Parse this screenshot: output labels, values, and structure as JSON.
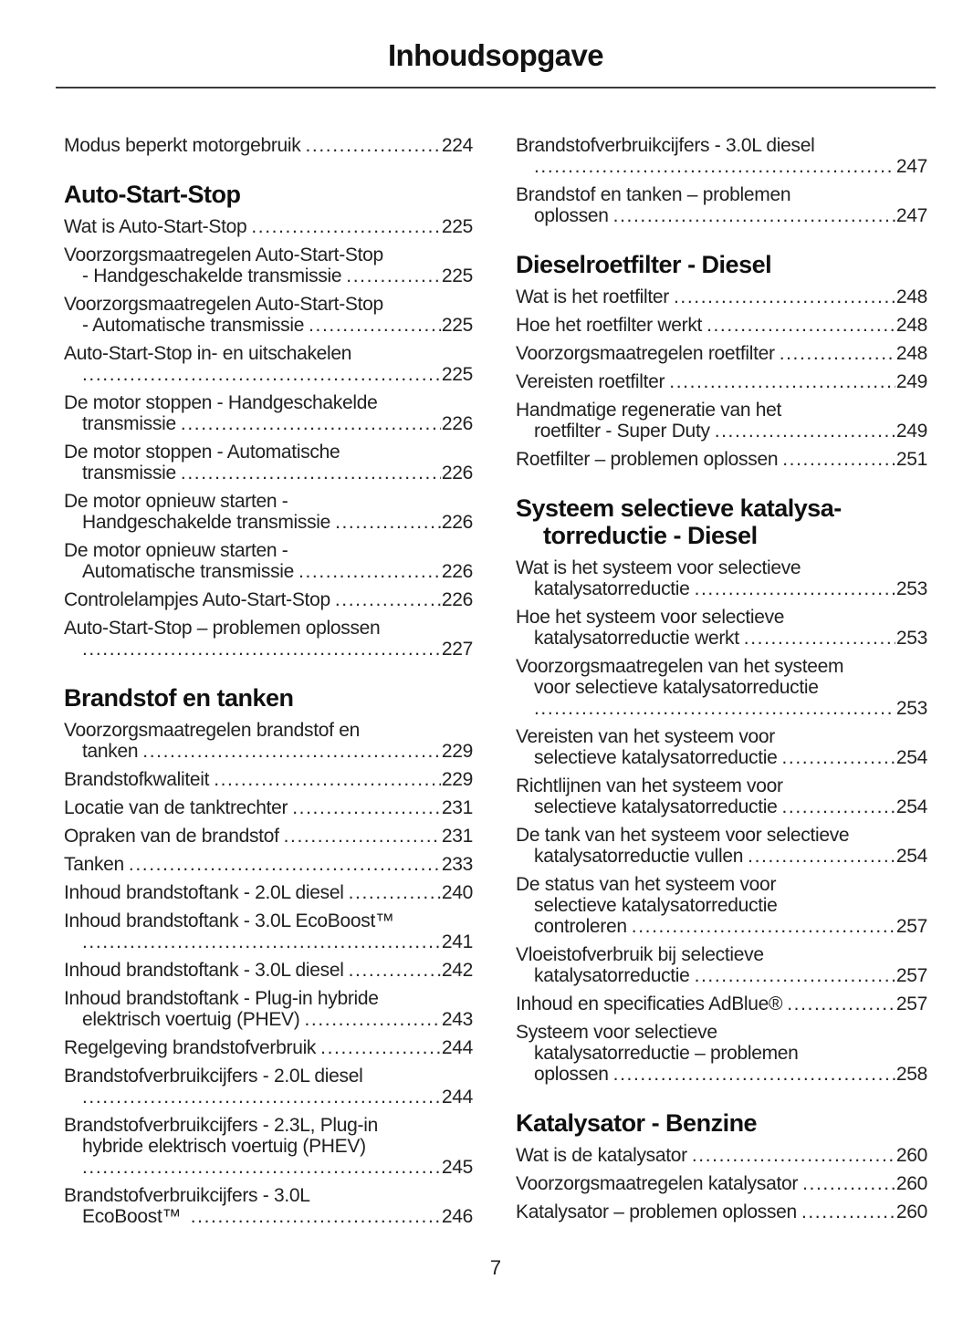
{
  "title": "Inhoudsopgave",
  "footer": {
    "page_number": "7"
  },
  "colors": {
    "text": "#212121",
    "heading": "#101010",
    "background": "#ffffff"
  },
  "toc": {
    "left_column": [
      {
        "heading": null,
        "entries": [
          {
            "lines": [],
            "last": "Modus beperkt motorgebruik",
            "page": "224"
          }
        ]
      },
      {
        "heading": [
          "Auto-Start-Stop"
        ],
        "entries": [
          {
            "lines": [],
            "last": "Wat is Auto-Start-Stop",
            "page": "225"
          },
          {
            "lines": [
              "Voorzorgsmaatregelen Auto-Start-Stop"
            ],
            "last": "- Handgeschakelde transmissie",
            "page": "225"
          },
          {
            "lines": [
              "Voorzorgsmaatregelen Auto-Start-Stop"
            ],
            "last": "- Automatische transmissie",
            "page": "225"
          },
          {
            "lines": [
              "Auto-Start-Stop in- en uitschakelen"
            ],
            "last": "",
            "page": "225"
          },
          {
            "lines": [
              "De motor stoppen - Handgeschakelde"
            ],
            "last": "transmissie",
            "page": "226"
          },
          {
            "lines": [
              "De motor stoppen - Automatische"
            ],
            "last": "transmissie",
            "page": "226"
          },
          {
            "lines": [
              "De motor opnieuw starten -"
            ],
            "last": "Handgeschakelde transmissie",
            "page": "226"
          },
          {
            "lines": [
              "De motor opnieuw starten -"
            ],
            "last": "Automatische transmissie",
            "page": "226"
          },
          {
            "lines": [],
            "last": "Controlelampjes Auto-Start-Stop",
            "page": "226"
          },
          {
            "lines": [
              "Auto-Start-Stop – problemen oplossen"
            ],
            "last": "",
            "page": "227"
          }
        ]
      },
      {
        "heading": [
          "Brandstof en tanken"
        ],
        "entries": [
          {
            "lines": [
              "Voorzorgsmaatregelen brandstof en"
            ],
            "last": "tanken",
            "page": "229"
          },
          {
            "lines": [],
            "last": "Brandstofkwaliteit",
            "page": "229"
          },
          {
            "lines": [],
            "last": "Locatie van de tanktrechter",
            "page": "231"
          },
          {
            "lines": [],
            "last": "Opraken van de brandstof",
            "page": "231"
          },
          {
            "lines": [],
            "last": "Tanken",
            "page": "233"
          },
          {
            "lines": [],
            "last": "Inhoud brandstoftank - 2.0L diesel",
            "page": "240"
          },
          {
            "lines": [
              "Inhoud brandstoftank - 3.0L EcoBoost™"
            ],
            "last": "",
            "page": "241"
          },
          {
            "lines": [],
            "last": "Inhoud brandstoftank - 3.0L diesel",
            "page": "242"
          },
          {
            "lines": [
              "Inhoud brandstoftank - Plug-in hybride"
            ],
            "last": "elektrisch voertuig (PHEV)",
            "page": "243"
          },
          {
            "lines": [],
            "last": "Regelgeving brandstofverbruik",
            "page": "244"
          },
          {
            "lines": [
              "Brandstofverbruikcijfers - 2.0L diesel"
            ],
            "last": "",
            "page": "244"
          },
          {
            "lines": [
              "Brandstofverbruikcijfers - 2.3L, Plug-in",
              "hybride elektrisch voertuig (PHEV)"
            ],
            "last": "",
            "page": "245"
          },
          {
            "lines": [
              "Brandstofverbruikcijfers - 3.0L"
            ],
            "last": "EcoBoost™ ",
            "page": "246"
          }
        ]
      }
    ],
    "right_column": [
      {
        "heading": null,
        "entries": [
          {
            "lines": [
              "Brandstofverbruikcijfers - 3.0L diesel"
            ],
            "last": "",
            "page": "247"
          },
          {
            "lines": [
              "Brandstof en tanken – problemen"
            ],
            "last": "oplossen",
            "page": "247"
          }
        ]
      },
      {
        "heading": [
          "Dieselroetfilter - Diesel"
        ],
        "entries": [
          {
            "lines": [],
            "last": "Wat is het roetfilter",
            "page": "248"
          },
          {
            "lines": [],
            "last": "Hoe het roetfilter werkt",
            "page": "248"
          },
          {
            "lines": [],
            "last": "Voorzorgsmaatregelen roetfilter",
            "page": "248"
          },
          {
            "lines": [],
            "last": "Vereisten roetfilter",
            "page": "249"
          },
          {
            "lines": [
              "Handmatige regeneratie van het"
            ],
            "last": "roetfilter - Super Duty",
            "page": "249"
          },
          {
            "lines": [],
            "last": "Roetfilter – problemen oplossen",
            "page": "251"
          }
        ]
      },
      {
        "heading": [
          "Systeem selectieve katalysa-",
          "torreductie - Diesel"
        ],
        "entries": [
          {
            "lines": [
              "Wat is het systeem voor selectieve"
            ],
            "last": "katalysatorreductie",
            "page": "253"
          },
          {
            "lines": [
              "Hoe het systeem voor selectieve"
            ],
            "last": "katalysatorreductie werkt",
            "page": "253"
          },
          {
            "lines": [
              "Voorzorgsmaatregelen van het systeem",
              "voor selectieve katalysatorreductie"
            ],
            "last": "",
            "page": "253"
          },
          {
            "lines": [
              "Vereisten van het systeem voor"
            ],
            "last": "selectieve katalysatorreductie",
            "page": "254"
          },
          {
            "lines": [
              "Richtlijnen van het systeem voor"
            ],
            "last": "selectieve katalysatorreductie",
            "page": "254"
          },
          {
            "lines": [
              "De tank van het systeem voor selectieve"
            ],
            "last": "katalysatorreductie vullen",
            "page": "254"
          },
          {
            "lines": [
              "De status van het systeem voor",
              "selectieve katalysatorreductie"
            ],
            "last": "controleren",
            "page": "257"
          },
          {
            "lines": [
              "Vloeistofverbruik bij selectieve"
            ],
            "last": "katalysatorreductie",
            "page": "257"
          },
          {
            "lines": [],
            "last": "Inhoud en specificaties AdBlue®",
            "page": "257"
          },
          {
            "lines": [
              "Systeem voor selectieve",
              "katalysatorreductie – problemen"
            ],
            "last": "oplossen",
            "page": "258"
          }
        ]
      },
      {
        "heading": [
          "Katalysator - Benzine"
        ],
        "entries": [
          {
            "lines": [],
            "last": "Wat is de katalysator",
            "page": "260"
          },
          {
            "lines": [],
            "last": "Voorzorgsmaatregelen katalysator",
            "page": "260"
          },
          {
            "lines": [],
            "last": "Katalysator – problemen oplossen",
            "page": "260"
          }
        ]
      }
    ]
  }
}
